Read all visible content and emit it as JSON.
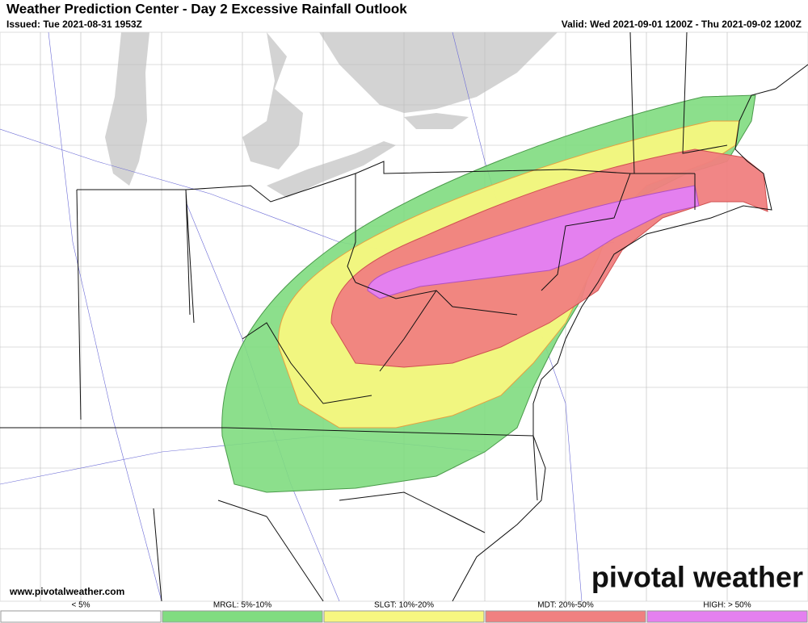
{
  "header": {
    "title": "Weather Prediction Center - Day 2 Excessive Rainfall Outlook",
    "issued": "Issued: Tue 2021-08-31 1953Z",
    "valid": "Valid: Wed 2021-09-01 1200Z - Thu 2021-09-02 1200Z"
  },
  "website": "www.pivotalweather.com",
  "brand": "pivotal weather",
  "legend": [
    {
      "label": "< 5%",
      "color": "#ffffff"
    },
    {
      "label": "MRGL: 5%-10%",
      "color": "#80dc80"
    },
    {
      "label": "SLGT: 10%-20%",
      "color": "#f7f780"
    },
    {
      "label": "MDT: 20%-50%",
      "color": "#f08080"
    },
    {
      "label": "HIGH: > 50%",
      "color": "#e480ef"
    }
  ]
}
